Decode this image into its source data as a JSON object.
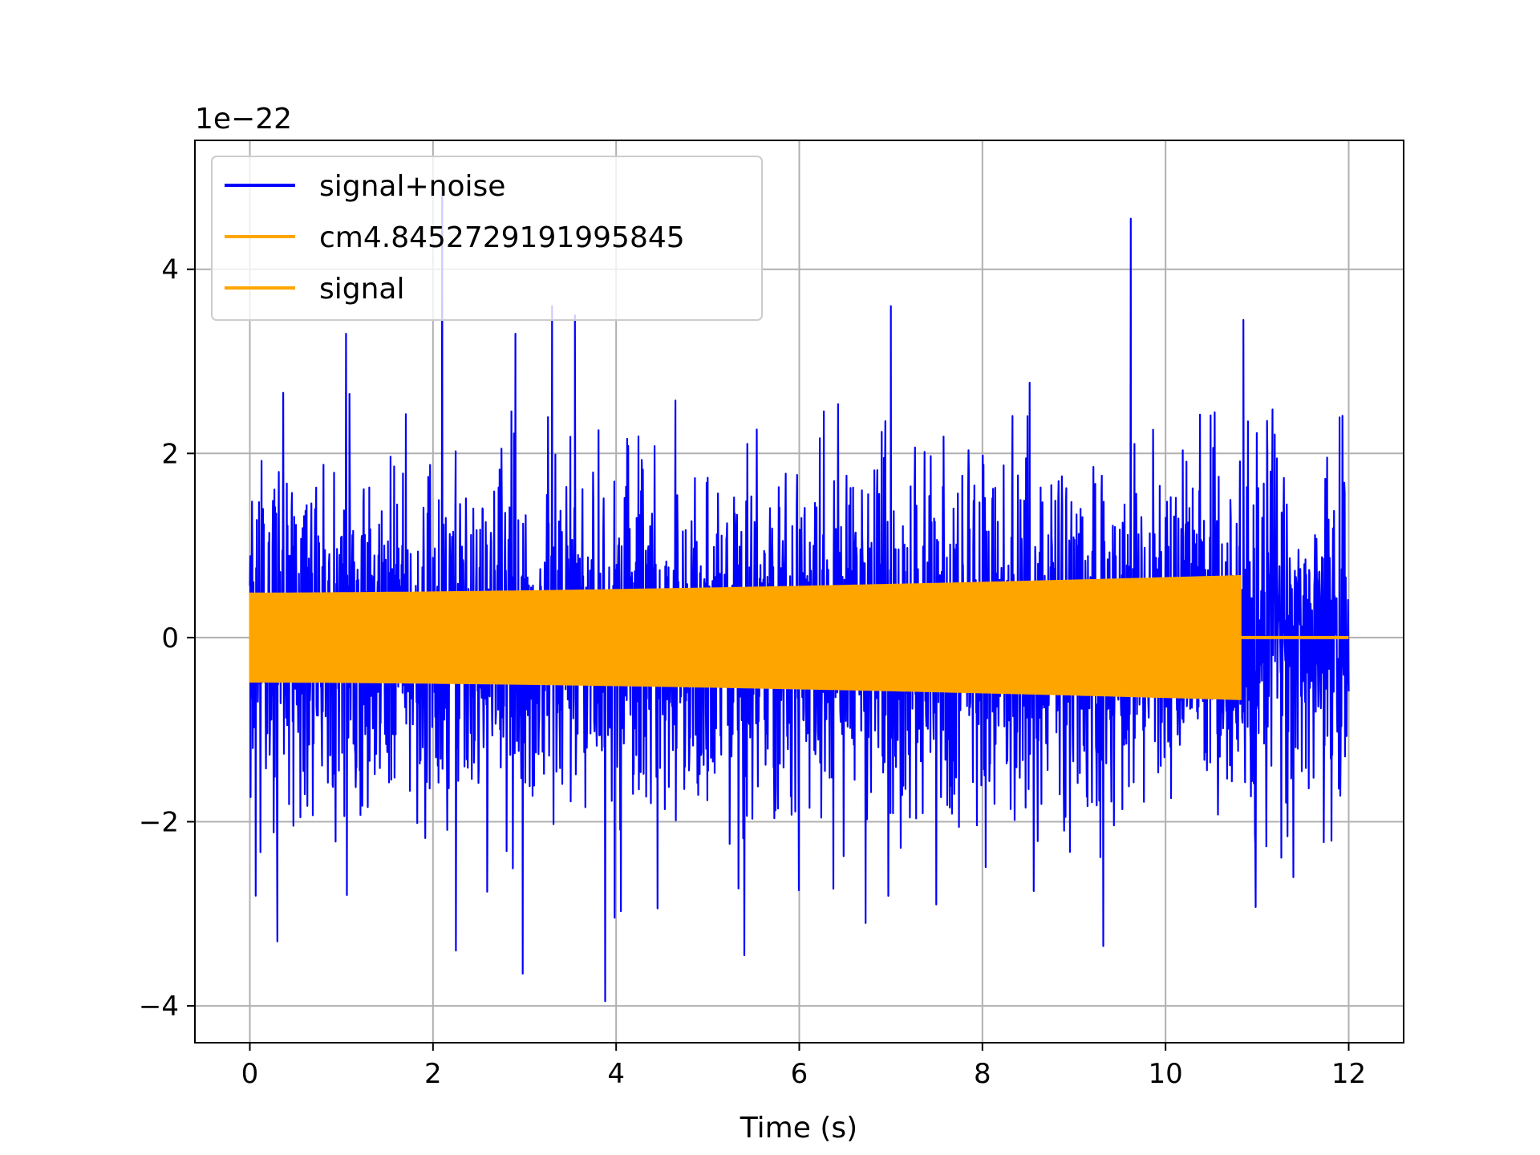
{
  "chart_data": {
    "type": "line",
    "title": "",
    "xlabel": "Time (s)",
    "ylabel": "",
    "y_scale_label": "1e−22",
    "xlim": [
      -0.6,
      12.6
    ],
    "ylim": [
      -4.4,
      5.4
    ],
    "grid": true,
    "legend_position": "upper-left",
    "x_ticks": [
      {
        "value": 0,
        "label": "0"
      },
      {
        "value": 2,
        "label": "2"
      },
      {
        "value": 4,
        "label": "4"
      },
      {
        "value": 6,
        "label": "6"
      },
      {
        "value": 8,
        "label": "8"
      },
      {
        "value": 10,
        "label": "10"
      },
      {
        "value": 12,
        "label": "12"
      }
    ],
    "y_ticks": [
      {
        "value": -4,
        "label": "−4"
      },
      {
        "value": -2,
        "label": "−2"
      },
      {
        "value": 0,
        "label": "0"
      },
      {
        "value": 2,
        "label": "2"
      },
      {
        "value": 4,
        "label": "4"
      }
    ],
    "series": [
      {
        "name": "signal+noise",
        "color": "#0000ff",
        "x_range": [
          0,
          12
        ],
        "typical_amplitude": 1.5,
        "peaks": [
          {
            "x": 2.1,
            "y": 4.9
          },
          {
            "x": 9.62,
            "y": 4.55
          },
          {
            "x": 7.0,
            "y": 3.6
          },
          {
            "x": 3.3,
            "y": 3.6
          },
          {
            "x": 3.55,
            "y": 3.5
          },
          {
            "x": 10.85,
            "y": 3.45
          },
          {
            "x": 1.05,
            "y": 3.3
          },
          {
            "x": 2.9,
            "y": 3.3
          },
          {
            "x": 3.88,
            "y": -3.95
          },
          {
            "x": 2.98,
            "y": -3.65
          },
          {
            "x": 5.4,
            "y": -3.45
          },
          {
            "x": 9.32,
            "y": -3.35
          },
          {
            "x": 0.3,
            "y": -3.3
          },
          {
            "x": 2.25,
            "y": -3.4
          }
        ]
      },
      {
        "name": "cm4.8452729191995845",
        "color": "#ffa500",
        "x_range": [
          0,
          10.82
        ],
        "amplitude_start": 0.48,
        "amplitude_end": 0.67
      },
      {
        "name": "signal",
        "color": "#ffa500",
        "x_range": [
          10.82,
          12
        ],
        "value": 0
      }
    ]
  }
}
